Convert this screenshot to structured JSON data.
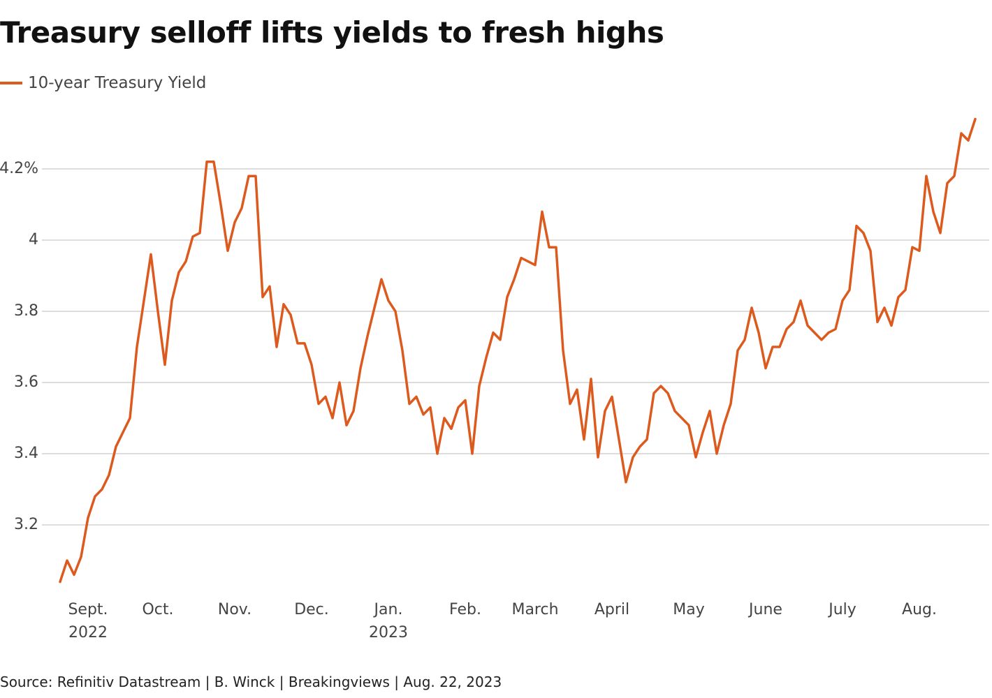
{
  "chart_data": {
    "type": "line",
    "title": "Treasury selloff lifts yields to fresh highs",
    "source": "Source: Refinitiv Datastream | B. Winck | Breakingviews | Aug. 22, 2023",
    "categories": [
      null,
      null,
      null,
      null,
      "Sept. 2022",
      null,
      null,
      null,
      null,
      null,
      null,
      null,
      null,
      null,
      "Oct.",
      null,
      null,
      null,
      null,
      null,
      null,
      null,
      null,
      null,
      null,
      "Nov.",
      null,
      null,
      null,
      null,
      null,
      null,
      null,
      null,
      null,
      null,
      "Dec.",
      null,
      null,
      null,
      null,
      null,
      null,
      null,
      null,
      null,
      null,
      "Jan. 2023",
      null,
      null,
      null,
      null,
      null,
      null,
      null,
      null,
      null,
      null,
      "Feb.",
      null,
      null,
      null,
      null,
      null,
      null,
      null,
      null,
      null,
      "March",
      null,
      null,
      null,
      null,
      null,
      null,
      null,
      null,
      null,
      null,
      "April",
      null,
      null,
      null,
      null,
      null,
      null,
      null,
      null,
      null,
      null,
      "May",
      null,
      null,
      null,
      null,
      null,
      null,
      null,
      null,
      null,
      null,
      "June",
      null,
      null,
      null,
      null,
      null,
      null,
      null,
      null,
      null,
      null,
      "July",
      null,
      null,
      null,
      null,
      null,
      null,
      null,
      null,
      null,
      null,
      "Aug.",
      null,
      null,
      null,
      null,
      null,
      null,
      null,
      null
    ],
    "series": [
      {
        "name": "10-year Treasury Yield",
        "color": "#dc5a1e",
        "values": [
          3.04,
          3.1,
          3.06,
          3.11,
          3.22,
          3.28,
          3.3,
          3.34,
          3.42,
          3.46,
          3.5,
          3.7,
          3.83,
          3.96,
          3.8,
          3.65,
          3.83,
          3.91,
          3.94,
          4.01,
          4.02,
          4.22,
          4.22,
          4.1,
          3.97,
          4.05,
          4.09,
          4.18,
          4.18,
          3.84,
          3.87,
          3.7,
          3.82,
          3.79,
          3.71,
          3.71,
          3.65,
          3.54,
          3.56,
          3.5,
          3.6,
          3.48,
          3.52,
          3.64,
          3.73,
          3.81,
          3.89,
          3.83,
          3.8,
          3.69,
          3.54,
          3.56,
          3.51,
          3.53,
          3.4,
          3.5,
          3.47,
          3.53,
          3.55,
          3.4,
          3.59,
          3.67,
          3.74,
          3.72,
          3.84,
          3.89,
          3.95,
          3.94,
          3.93,
          4.08,
          3.98,
          3.98,
          3.69,
          3.54,
          3.58,
          3.44,
          3.61,
          3.39,
          3.52,
          3.56,
          3.44,
          3.32,
          3.39,
          3.42,
          3.44,
          3.57,
          3.59,
          3.57,
          3.52,
          3.5,
          3.48,
          3.39,
          3.46,
          3.52,
          3.4,
          3.48,
          3.54,
          3.69,
          3.72,
          3.81,
          3.74,
          3.64,
          3.7,
          3.7,
          3.75,
          3.77,
          3.83,
          3.76,
          3.74,
          3.72,
          3.74,
          3.75,
          3.83,
          3.86,
          4.04,
          4.02,
          3.97,
          3.77,
          3.81,
          3.76,
          3.84,
          3.86,
          3.98,
          3.97,
          4.18,
          4.08,
          4.02,
          4.16,
          4.18,
          4.3,
          4.28,
          4.34
        ]
      }
    ],
    "ylim": [
      3.0,
      4.4
    ],
    "yticks": [
      3.2,
      3.4,
      3.6,
      3.8,
      4,
      {
        "value": 4.2,
        "label": "4.2%"
      }
    ],
    "grid": true
  }
}
